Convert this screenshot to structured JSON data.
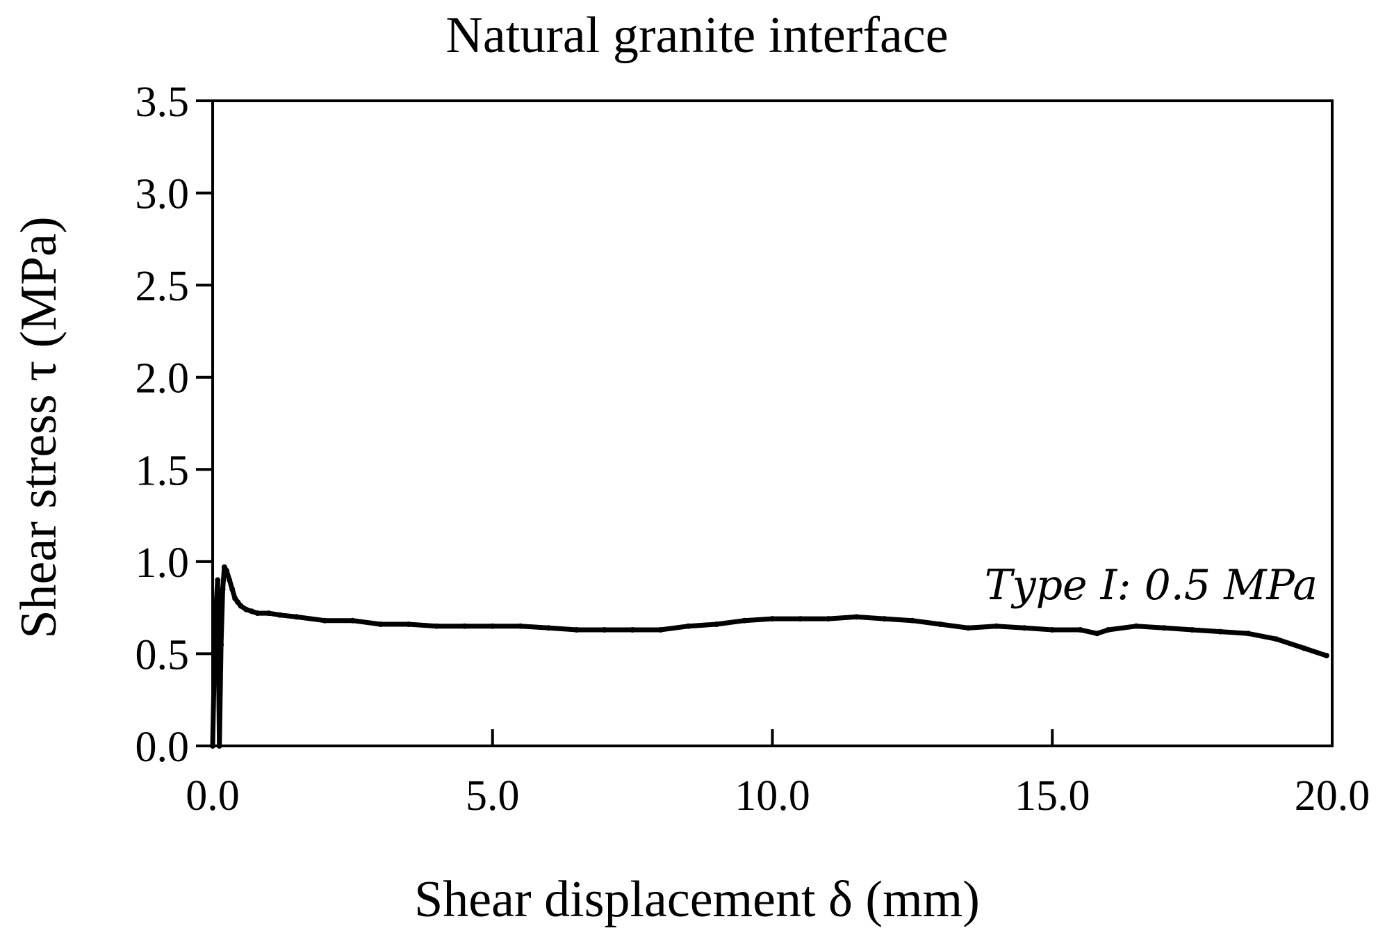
{
  "chart_data": {
    "type": "line",
    "title": "Natural granite interface",
    "xlabel": "Shear displacement δ (mm)",
    "ylabel": "Shear stress τ (MPa)",
    "xlim": [
      0,
      20
    ],
    "ylim": [
      0,
      3.5
    ],
    "x_ticks": [
      0,
      5,
      10,
      15,
      20
    ],
    "x_tick_labels": [
      "0.0",
      "5.0",
      "10.0",
      "15.0",
      "20.0"
    ],
    "y_ticks": [
      0,
      0.5,
      1.0,
      1.5,
      2.0,
      2.5,
      3.0,
      3.5
    ],
    "y_tick_labels": [
      "0.0",
      "0.5",
      "1.0",
      "1.5",
      "2.0",
      "2.5",
      "3.0",
      "3.5"
    ],
    "grid": false,
    "annotation": "Type I: 0.5 MPa",
    "line_color": "#000000",
    "series": [
      {
        "x": [
          0.0,
          0.03,
          0.06,
          0.09,
          0.12,
          0.15,
          0.18,
          0.21,
          0.25,
          0.3,
          0.35,
          0.4,
          0.45,
          0.5,
          0.6,
          0.7,
          0.8,
          1.0,
          1.2,
          1.5,
          2.0,
          2.5,
          3.0,
          3.5,
          4.0,
          4.5,
          5.0,
          5.5,
          6.0,
          6.5,
          7.0,
          7.5,
          8.0,
          8.5,
          9.0,
          9.5,
          10.0,
          10.5,
          11.0,
          11.5,
          12.0,
          12.5,
          13.0,
          13.5,
          14.0,
          14.5,
          15.0,
          15.5,
          15.8,
          16.0,
          16.5,
          17.0,
          17.5,
          18.0,
          18.5,
          19.0,
          19.5,
          19.9
        ],
        "y": [
          0.0,
          0.45,
          0.75,
          0.9,
          0.0,
          0.55,
          0.85,
          0.97,
          0.95,
          0.9,
          0.85,
          0.8,
          0.78,
          0.76,
          0.74,
          0.73,
          0.72,
          0.72,
          0.71,
          0.7,
          0.68,
          0.68,
          0.66,
          0.66,
          0.65,
          0.65,
          0.65,
          0.65,
          0.64,
          0.63,
          0.63,
          0.63,
          0.63,
          0.65,
          0.66,
          0.68,
          0.69,
          0.69,
          0.69,
          0.7,
          0.69,
          0.68,
          0.66,
          0.64,
          0.65,
          0.64,
          0.63,
          0.63,
          0.61,
          0.63,
          0.65,
          0.64,
          0.63,
          0.62,
          0.61,
          0.58,
          0.53,
          0.49
        ]
      }
    ]
  }
}
